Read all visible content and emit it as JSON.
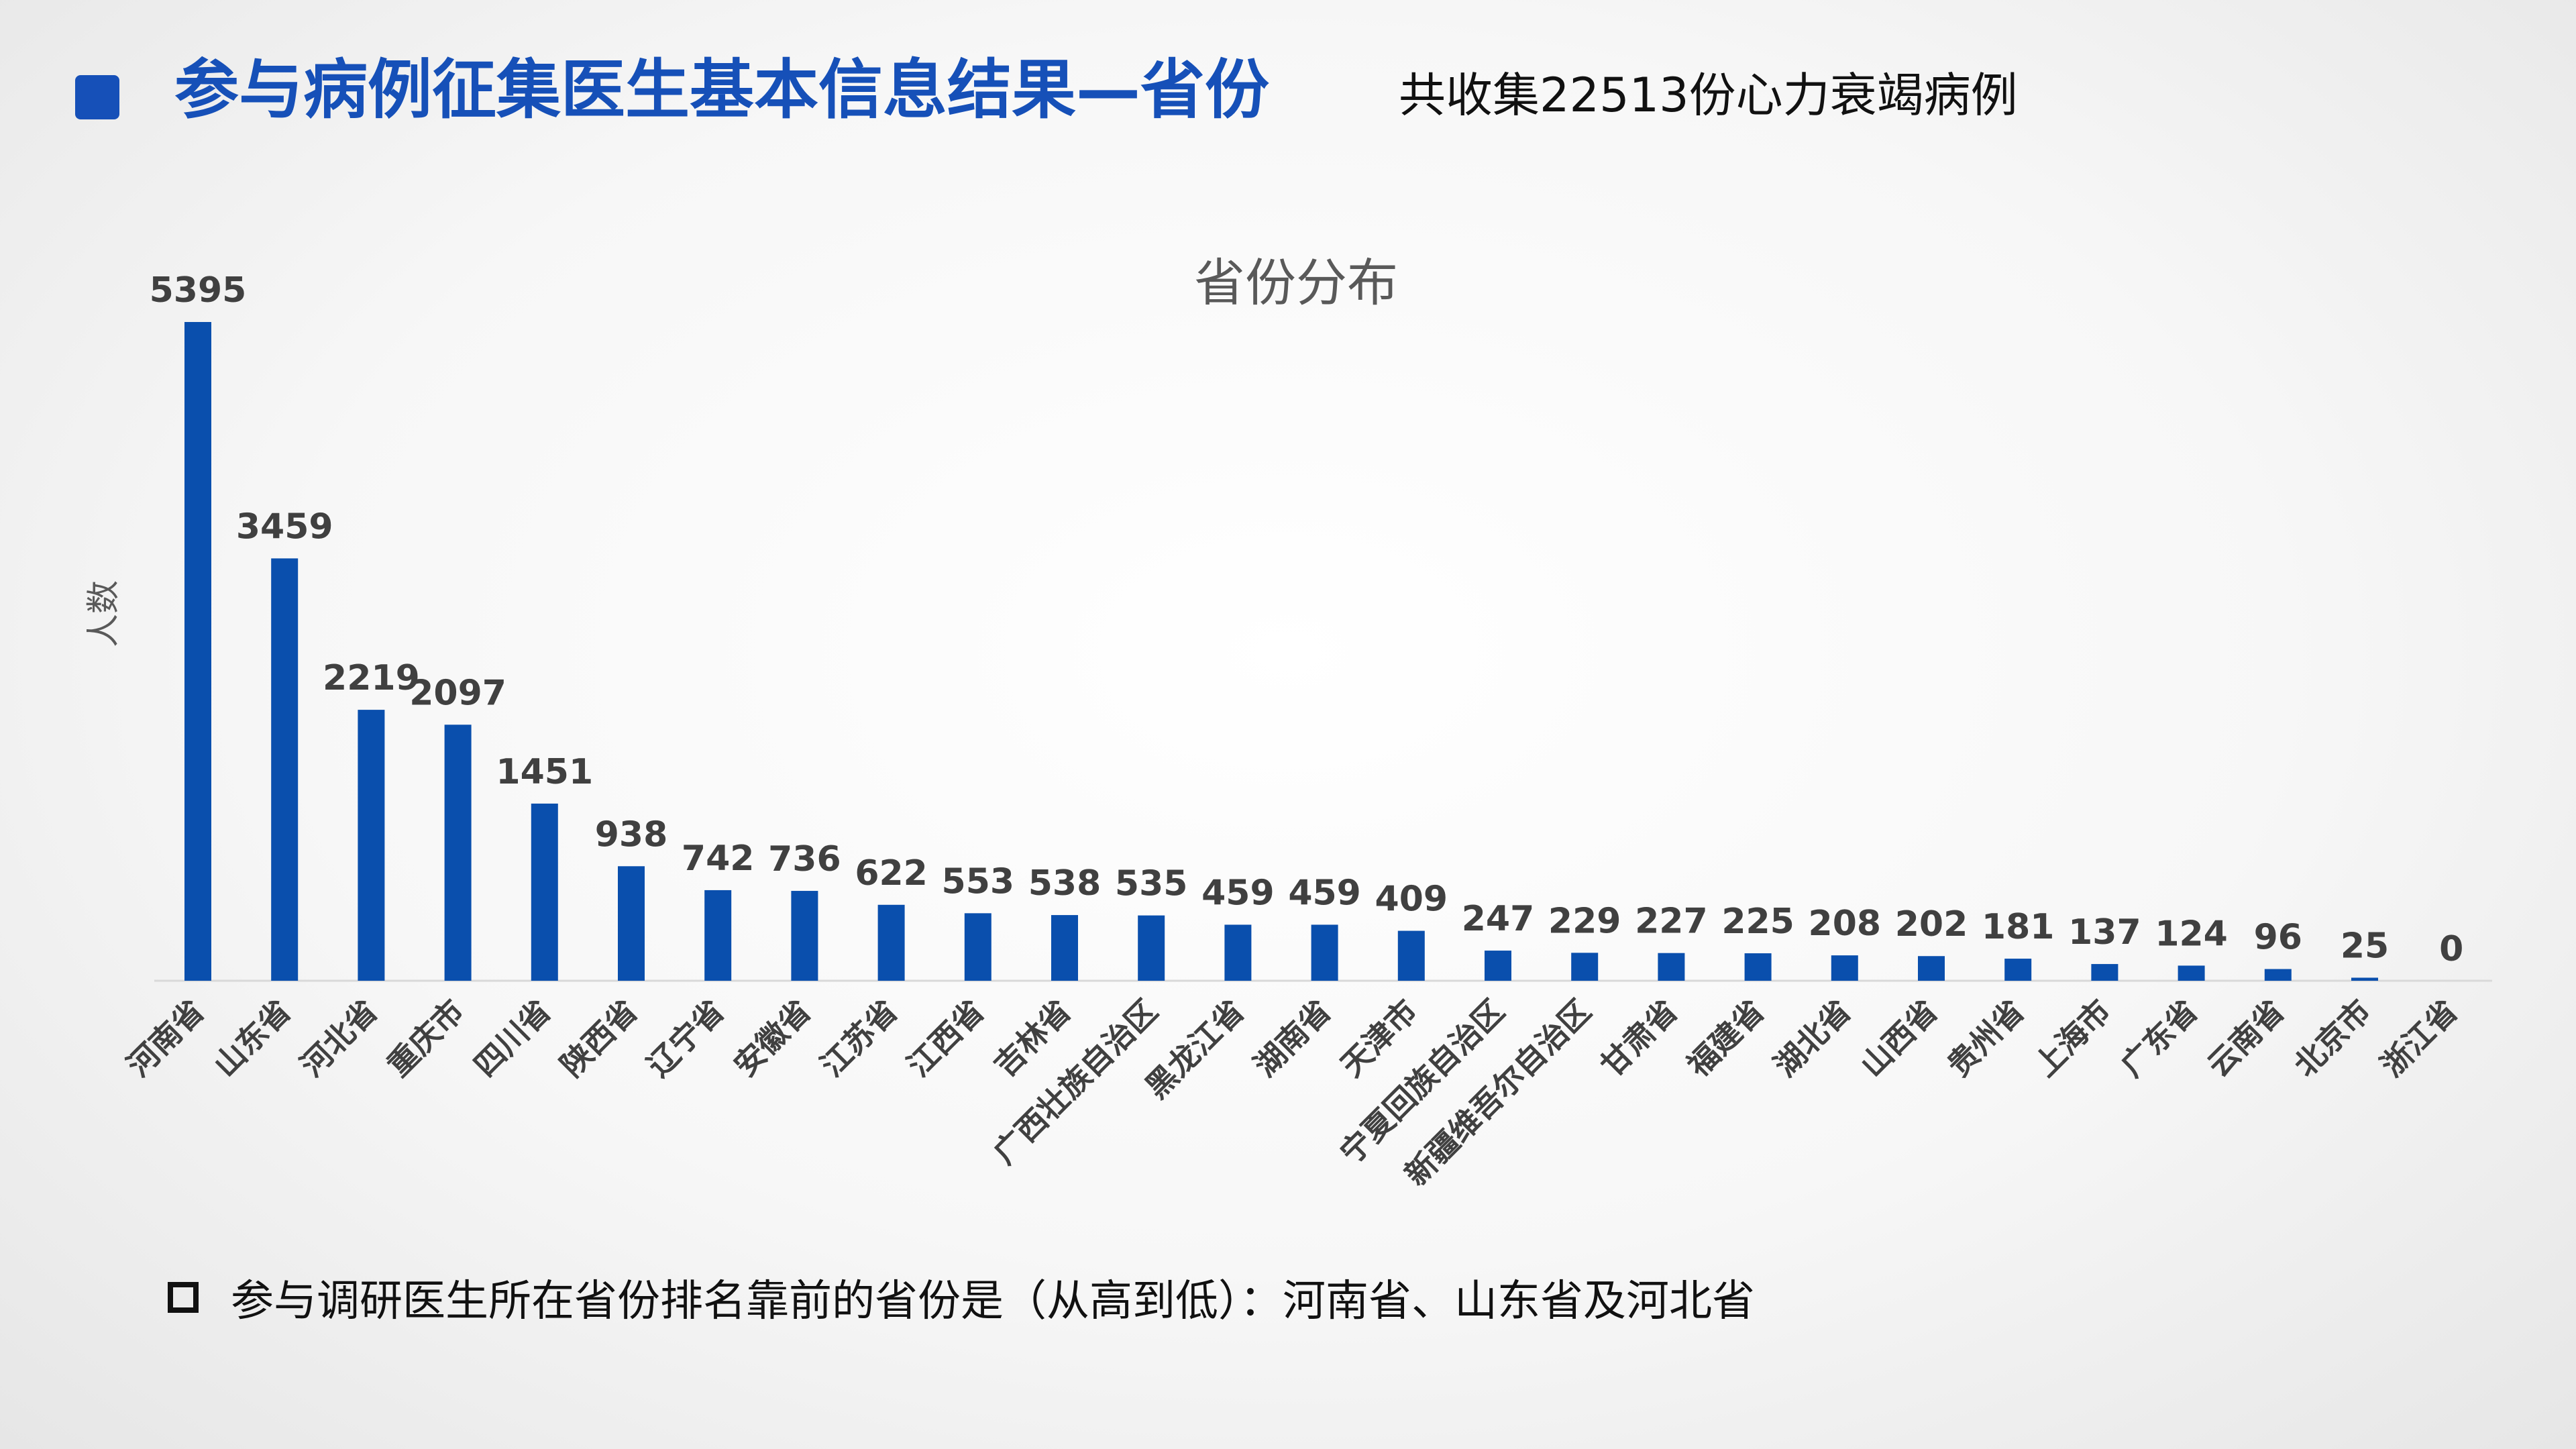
{
  "header": {
    "title": "参与病例征集医生基本信息结果—省份",
    "subtitle": "共收集22513份心力衰竭病例"
  },
  "footnote": {
    "text": "参与调研医生所在省份排名靠前的省份是（从高到低）：河南省、山东省及河北省"
  },
  "colors": {
    "accent": "#1650b8",
    "bar": "#0a4fad",
    "text_dark": "#404040",
    "text_grey": "#595959"
  },
  "chart_data": {
    "type": "bar",
    "title": "省份分布",
    "ylabel": "人数",
    "xlabel": "",
    "categories": [
      "河南省",
      "山东省",
      "河北省",
      "重庆市",
      "四川省",
      "陕西省",
      "辽宁省",
      "安徽省",
      "江苏省",
      "江西省",
      "吉林省",
      "广西壮族自治区",
      "黑龙江省",
      "湖南省",
      "天津市",
      "宁夏回族自治区",
      "新疆维吾尔自治区",
      "甘肃省",
      "福建省",
      "湖北省",
      "山西省",
      "贵州省",
      "上海市",
      "广东省",
      "云南省",
      "北京市",
      "浙江省"
    ],
    "values": [
      5395,
      3459,
      2219,
      2097,
      1451,
      938,
      742,
      736,
      622,
      553,
      538,
      535,
      459,
      459,
      409,
      247,
      229,
      227,
      225,
      208,
      202,
      181,
      137,
      124,
      96,
      25,
      0
    ],
    "ylim": [
      0,
      5395
    ],
    "data_labels": true,
    "grid": false,
    "legend": "none"
  }
}
